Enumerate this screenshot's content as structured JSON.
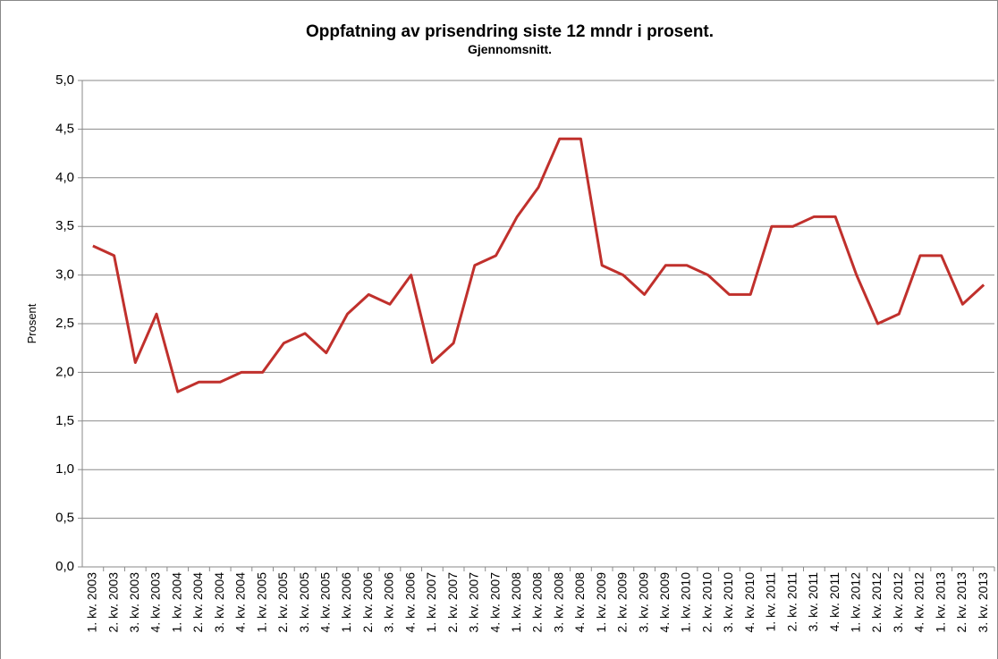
{
  "chart_data": {
    "type": "line",
    "title": "Oppfatning av prisendring siste 12 mndr i prosent.",
    "subtitle": "Gjennomsnitt.",
    "y_label": "Prosent",
    "categories": [
      "1. kv. 2003",
      "2. kv. 2003",
      "3. kv. 2003",
      "4. kv. 2003",
      "1. kv. 2004",
      "2. kv. 2004",
      "3. kv. 2004",
      "4. kv. 2004",
      "1. kv. 2005",
      "2. kv. 2005",
      "3. kv. 2005",
      "4. kv. 2005",
      "1. kv. 2006",
      "2. kv. 2006",
      "3. kv. 2006",
      "4. kv. 2006",
      "1. kv. 2007",
      "2. kv. 2007",
      "3. kv. 2007",
      "4. kv. 2007",
      "1. kv. 2008",
      "2. kv. 2008",
      "3. kv. 2008",
      "4. kv. 2008",
      "1. kv. 2009",
      "2. kv. 2009",
      "3. kv. 2009",
      "4. kv. 2009",
      "1. kv. 2010",
      "2. kv. 2010",
      "3. kv. 2010",
      "4. kv. 2010",
      "1. kv. 2011",
      "2. kv. 2011",
      "3. kv. 2011",
      "4. kv. 2011",
      "1. kv. 2012",
      "2. kv. 2012",
      "3. kv. 2012",
      "4. kv. 2012",
      "1. kv. 2013",
      "2. kv. 2013",
      "3. kv. 2013"
    ],
    "values": [
      3.3,
      3.2,
      2.1,
      2.6,
      1.8,
      1.9,
      1.9,
      2.0,
      2.0,
      2.3,
      2.4,
      2.2,
      2.6,
      2.8,
      2.7,
      3.0,
      2.1,
      2.3,
      3.1,
      3.2,
      3.6,
      3.9,
      4.4,
      4.4,
      3.1,
      3.0,
      2.8,
      3.1,
      3.1,
      3.0,
      2.8,
      2.8,
      3.5,
      3.5,
      3.6,
      3.6,
      3.0,
      2.5,
      2.6,
      3.2,
      3.2,
      2.7,
      2.9
    ],
    "color": "#c0302c",
    "ylim": [
      0,
      5
    ],
    "yticks": [
      {
        "value": 0,
        "label": "0,0"
      },
      {
        "value": 0.5,
        "label": "0,5"
      },
      {
        "value": 1,
        "label": "1,0"
      },
      {
        "value": 1.5,
        "label": "1,5"
      },
      {
        "value": 2,
        "label": "2,0"
      },
      {
        "value": 2.5,
        "label": "2,5"
      },
      {
        "value": 3,
        "label": "3,0"
      },
      {
        "value": 3.5,
        "label": "3,5"
      },
      {
        "value": 4,
        "label": "4,0"
      },
      {
        "value": 4.5,
        "label": "4,5"
      },
      {
        "value": 5,
        "label": "5,0"
      }
    ],
    "grid": true
  }
}
